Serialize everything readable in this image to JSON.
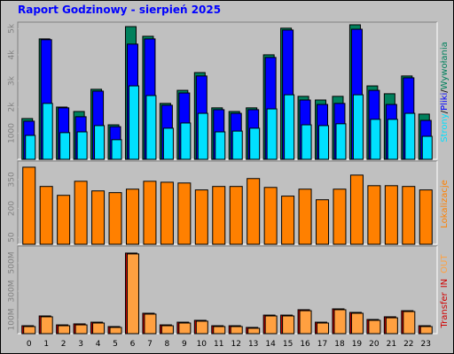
{
  "title": "Raport Godzinowy -   sierpień 2025",
  "categories": [
    "0",
    "1",
    "2",
    "3",
    "4",
    "5",
    "6",
    "7",
    "8",
    "9",
    "10",
    "11",
    "12",
    "13",
    "14",
    "15",
    "16",
    "17",
    "18",
    "19",
    "20",
    "21",
    "22",
    "23"
  ],
  "chart_data": [
    {
      "type": "bar",
      "legend_separator": "/",
      "ylim": [
        0,
        5150
      ],
      "yticks": [
        {
          "value": 5000,
          "label": "5k"
        },
        {
          "value": 4000,
          "label": "4k"
        },
        {
          "value": 3000,
          "label": "3k"
        },
        {
          "value": 2000,
          "label": "2k"
        },
        1000
      ],
      "series": [
        {
          "name": "Wywołania",
          "color": "#00805c",
          "values": [
            1560,
            4610,
            2000,
            1830,
            2680,
            1320,
            5080,
            4710,
            2140,
            2640,
            3320,
            1970,
            1830,
            1970,
            4000,
            5020,
            2410,
            2270,
            2410,
            5150,
            2810,
            2510,
            3190,
            1730
          ]
        },
        {
          "name": "Pliki",
          "color": "#0000ff",
          "values": [
            1460,
            4580,
            1970,
            1630,
            2610,
            1250,
            4410,
            4610,
            2070,
            2540,
            3190,
            1900,
            1760,
            1900,
            3900,
            4950,
            2270,
            2100,
            2140,
            4980,
            2640,
            2100,
            3120,
            1490
          ]
        },
        {
          "name": "Strony",
          "color": "#00e0ff",
          "values": [
            915,
            2140,
            1020,
            1050,
            1290,
            750,
            2810,
            2440,
            1190,
            1390,
            1760,
            1050,
            1080,
            1190,
            1930,
            2470,
            1320,
            1290,
            1360,
            2470,
            1530,
            1530,
            1760,
            880
          ]
        }
      ]
    },
    {
      "type": "bar",
      "ylim": [
        14,
        432
      ],
      "yticks": [
        350,
        200,
        50
      ],
      "series": [
        {
          "name": "Lokalizacje",
          "color": "#ff8000",
          "values": [
            414,
            314,
            268,
            341,
            291,
            282,
            300,
            341,
            336,
            332,
            296,
            314,
            314,
            355,
            309,
            264,
            300,
            245,
            300,
            373,
            318,
            318,
            314,
            296
          ]
        }
      ]
    },
    {
      "type": "bar",
      "axis_label": "Transfer",
      "ylim": [
        0,
        600
      ],
      "yticks": [
        {
          "value": 500,
          "label": "500M"
        },
        {
          "value": 300,
          "label": "300M"
        },
        {
          "value": 100,
          "label": "100M"
        }
      ],
      "series": [
        {
          "name": "IN",
          "color": "#d00000",
          "values": [
            56,
            125,
            62,
            69,
            81,
            50,
            569,
            144,
            62,
            81,
            94,
            56,
            56,
            44,
            131,
            131,
            169,
            81,
            175,
            150,
            100,
            119,
            162,
            56
          ]
        },
        {
          "name": "OUT",
          "color": "#ffa040",
          "values": [
            50,
            119,
            56,
            62,
            75,
            44,
            563,
            138,
            56,
            75,
            88,
            50,
            50,
            38,
            125,
            125,
            162,
            75,
            169,
            144,
            94,
            112,
            156,
            50
          ]
        }
      ]
    }
  ]
}
